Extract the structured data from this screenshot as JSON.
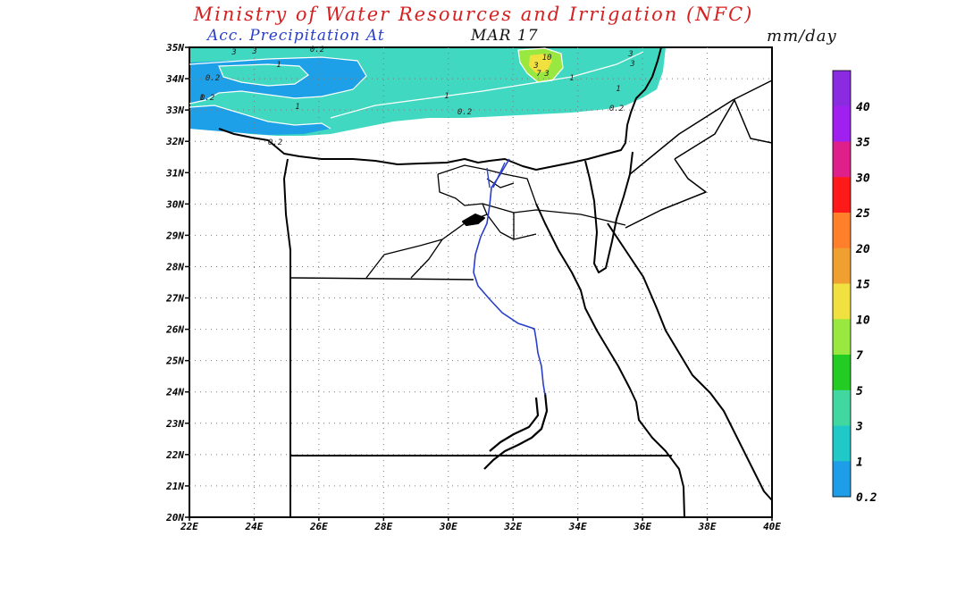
{
  "header": {
    "title": "Ministry of Water Resources and Irrigation (NFC)",
    "subtitle": "Acc. Precipitation  At",
    "date": "MAR 17",
    "unit": "mm/day"
  },
  "map": {
    "lat_labels": [
      "35N",
      "34N",
      "33N",
      "32N",
      "31N",
      "30N",
      "29N",
      "28N",
      "27N",
      "26N",
      "25N",
      "24N",
      "23N",
      "22N",
      "21N",
      "20N"
    ],
    "lon_labels": [
      "22E",
      "24E",
      "26E",
      "28E",
      "30E",
      "32E",
      "34E",
      "36E",
      "38E",
      "40E"
    ],
    "contour_labels": [
      "0.2",
      "0.2",
      "0.2",
      "0.2",
      "1",
      "1",
      "1",
      "1",
      "1",
      "1",
      "3",
      "3",
      "3",
      "7",
      "10",
      "3",
      "3",
      "3",
      "0.2",
      "0.2"
    ]
  },
  "colorbar": {
    "colors": [
      "#8a2be2",
      "#a020f0",
      "#e0208a",
      "#ff1a1a",
      "#ff7f2a",
      "#f0a030",
      "#f0e040",
      "#98e840",
      "#22cc22",
      "#40d8a0",
      "#20c8c8",
      "#1e9ee8"
    ],
    "labels": [
      "40",
      "35",
      "30",
      "25",
      "20",
      "15",
      "10",
      "7",
      "5",
      "3",
      "1",
      "0.2"
    ]
  }
}
